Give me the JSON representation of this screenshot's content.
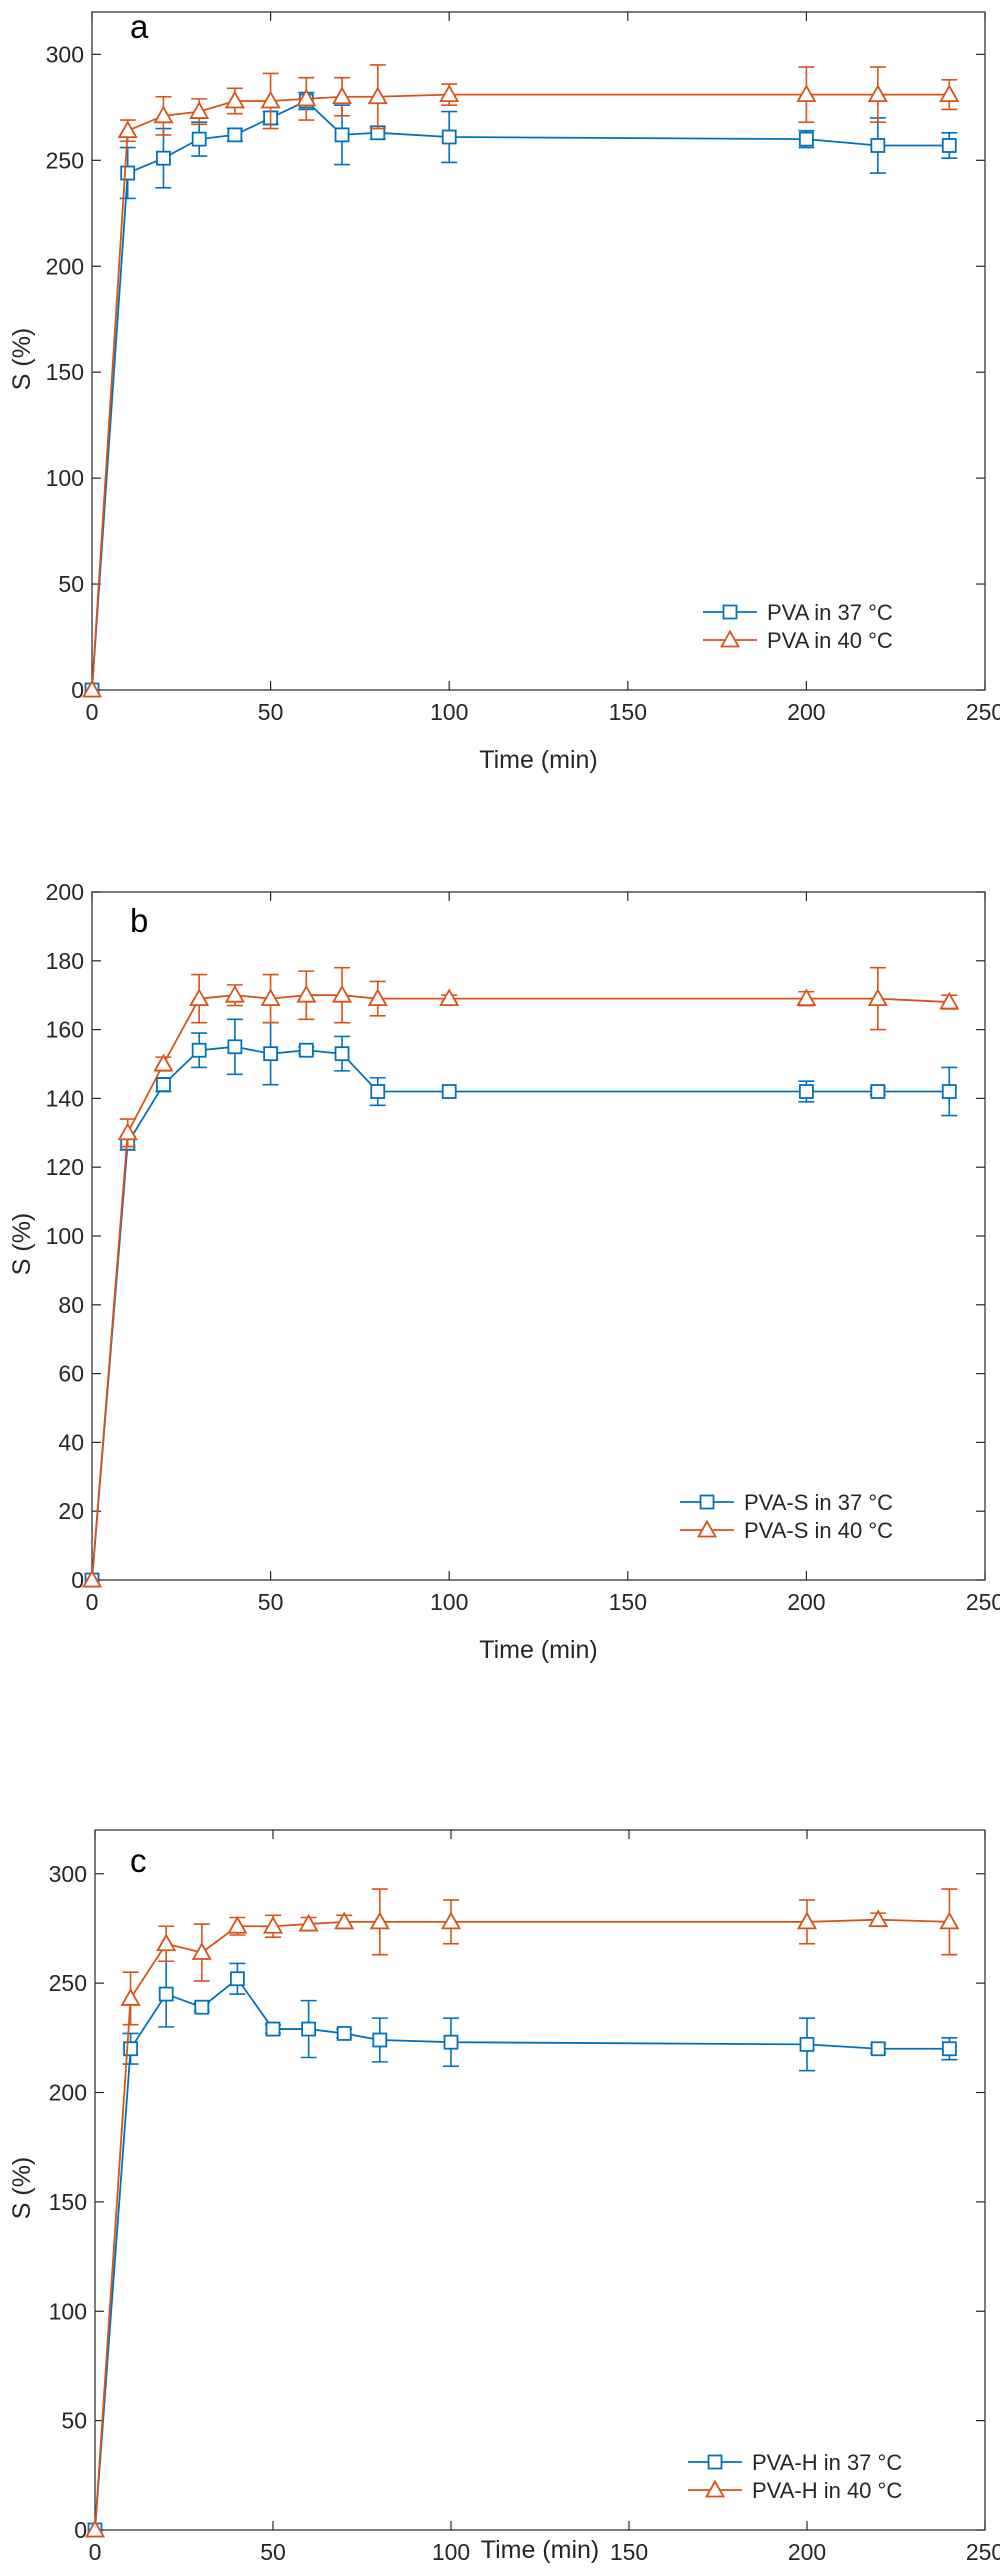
{
  "colors": {
    "blue": "#0072BD",
    "orange": "#D95319",
    "axis": "#262626"
  },
  "chart_data": [
    {
      "type": "line",
      "panel_label": "a",
      "xlabel": "Time (min)",
      "ylabel": "S (%)",
      "xlim": [
        0,
        250
      ],
      "ylim": [
        0,
        320
      ],
      "xticks": [
        0,
        50,
        100,
        150,
        200,
        250
      ],
      "yticks": [
        0,
        50,
        100,
        150,
        200,
        250,
        300
      ],
      "legend_position": "bottom-right",
      "x": [
        0,
        10,
        20,
        30,
        40,
        50,
        60,
        70,
        80,
        100,
        200,
        220,
        240
      ],
      "series": [
        {
          "name": "PVA in 37 °C",
          "marker": "square",
          "color": "#0072BD",
          "values": [
            0,
            244,
            251,
            260,
            262,
            270,
            278,
            262,
            263,
            261,
            260,
            257,
            257
          ],
          "errors": [
            0,
            12,
            14,
            8,
            3,
            3,
            4,
            14,
            3,
            12,
            4,
            13,
            6
          ]
        },
        {
          "name": "PVA in 40 °C",
          "marker": "triangle",
          "color": "#D95319",
          "values": [
            0,
            264,
            271,
            273,
            278,
            278,
            279,
            280,
            280,
            281,
            281,
            281,
            281
          ],
          "errors": [
            0,
            5,
            9,
            6,
            6,
            13,
            10,
            9,
            15,
            5,
            13,
            13,
            7
          ]
        }
      ]
    },
    {
      "type": "line",
      "panel_label": "b",
      "xlabel": "Time (min)",
      "ylabel": "S (%)",
      "xlim": [
        0,
        250
      ],
      "ylim": [
        0,
        200
      ],
      "xticks": [
        0,
        50,
        100,
        150,
        200,
        250
      ],
      "yticks": [
        0,
        20,
        40,
        60,
        80,
        100,
        120,
        140,
        160,
        180,
        200
      ],
      "legend_position": "bottom-right",
      "x": [
        0,
        10,
        20,
        30,
        40,
        50,
        60,
        70,
        80,
        100,
        200,
        220,
        240
      ],
      "series": [
        {
          "name": "PVA-S in 37 °C",
          "marker": "square",
          "color": "#0072BD",
          "values": [
            0,
            127,
            144,
            154,
            155,
            153,
            154,
            153,
            142,
            142,
            142,
            142,
            142
          ],
          "errors": [
            0,
            2,
            2,
            5,
            8,
            9,
            1,
            5,
            4,
            0,
            3,
            1,
            7
          ]
        },
        {
          "name": "PVA-S in 40 °C",
          "marker": "triangle",
          "color": "#D95319",
          "values": [
            0,
            130,
            150,
            169,
            170,
            169,
            170,
            170,
            169,
            169,
            169,
            169,
            168
          ],
          "errors": [
            0,
            4,
            2,
            7,
            3,
            7,
            7,
            8,
            5,
            1,
            2,
            9,
            2
          ]
        }
      ]
    },
    {
      "type": "line",
      "panel_label": "c",
      "xlabel": "Time (min)",
      "ylabel": "S (%)",
      "xlim": [
        0,
        250
      ],
      "ylim": [
        0,
        320
      ],
      "xticks": [
        0,
        50,
        100,
        150,
        200,
        250
      ],
      "yticks": [
        0,
        50,
        100,
        150,
        200,
        250,
        300
      ],
      "legend_position": "bottom-right",
      "x": [
        0,
        10,
        20,
        30,
        40,
        50,
        60,
        70,
        80,
        100,
        200,
        220,
        240
      ],
      "series": [
        {
          "name": "PVA-H in 37 °C",
          "marker": "square",
          "color": "#0072BD",
          "values": [
            0,
            220,
            245,
            239,
            252,
            229,
            229,
            227,
            224,
            223,
            222,
            220,
            220
          ],
          "errors": [
            0,
            7,
            15,
            2,
            7,
            2,
            13,
            2,
            10,
            11,
            12,
            2,
            5
          ]
        },
        {
          "name": "PVA-H in 40 °C",
          "marker": "triangle",
          "color": "#D95319",
          "values": [
            0,
            243,
            268,
            264,
            276,
            276,
            277,
            278,
            278,
            278,
            278,
            279,
            278
          ],
          "errors": [
            0,
            12,
            8,
            13,
            4,
            5,
            3,
            3,
            15,
            10,
            10,
            3,
            15
          ]
        }
      ]
    }
  ]
}
